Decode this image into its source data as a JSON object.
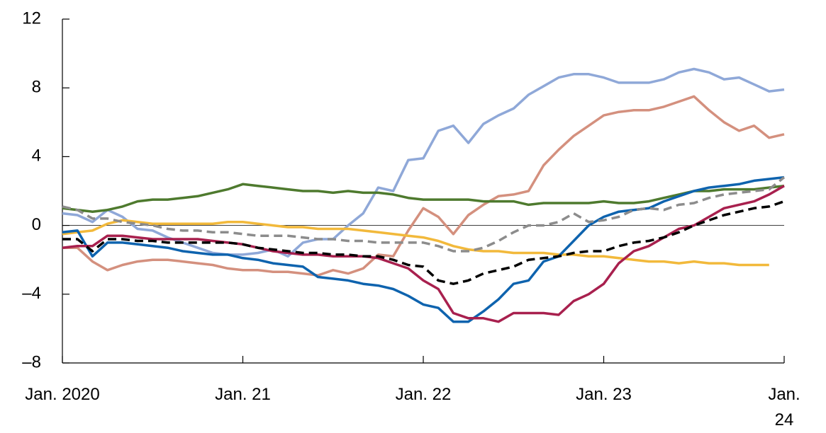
{
  "chart_data": {
    "type": "line",
    "categories": [
      "Jan. 2020",
      null,
      null,
      null,
      null,
      null,
      null,
      null,
      null,
      null,
      null,
      null,
      "Jan. 21",
      null,
      null,
      null,
      null,
      null,
      null,
      null,
      null,
      null,
      null,
      null,
      "Jan. 22",
      null,
      null,
      null,
      null,
      null,
      null,
      null,
      null,
      null,
      null,
      null,
      "Jan. 23",
      null,
      null,
      null,
      null,
      null,
      null,
      null,
      null,
      null,
      null,
      null,
      "Jan. 24"
    ],
    "ylim": [
      -8,
      12
    ],
    "yticks": [
      12,
      8,
      4,
      0,
      {
        "value": -4,
        "label": "–4"
      },
      {
        "value": -8,
        "label": "–8"
      }
    ],
    "series": [
      {
        "color": "#8fa8d8",
        "values": [
          0.7,
          0.6,
          0.2,
          0.9,
          0.5,
          -0.2,
          -0.3,
          -0.7,
          -1.0,
          -1.3,
          -1.6,
          -1.7,
          -1.7,
          -1.6,
          -1.4,
          -1.8,
          -1.0,
          -0.8,
          -0.8,
          0.0,
          0.7,
          2.2,
          2.0,
          3.8,
          3.9,
          5.5,
          5.8,
          4.8,
          5.9,
          6.4,
          6.8,
          7.6,
          8.1,
          8.6,
          8.8,
          8.8,
          8.6,
          8.3,
          8.3,
          8.3,
          8.5,
          8.9,
          9.1,
          8.9,
          8.5,
          8.6,
          8.2,
          7.8,
          7.9
        ]
      },
      {
        "color": "#d4907e",
        "values": [
          -1.3,
          -1.3,
          -2.1,
          -2.6,
          -2.3,
          -2.1,
          -2.0,
          -2.0,
          -2.1,
          -2.2,
          -2.3,
          -2.5,
          -2.6,
          -2.6,
          -2.7,
          -2.7,
          -2.8,
          -2.9,
          -2.6,
          -2.8,
          -2.5,
          -1.7,
          -1.8,
          -0.3,
          1.0,
          0.5,
          -0.5,
          0.6,
          1.2,
          1.7,
          1.8,
          2.0,
          3.5,
          4.4,
          5.2,
          5.8,
          6.4,
          6.6,
          6.7,
          6.7,
          6.9,
          7.2,
          7.5,
          6.7,
          6.0,
          5.5,
          5.8,
          5.1,
          5.3
        ]
      },
      {
        "color": "#4e7a2e",
        "values": [
          1.0,
          0.9,
          0.8,
          0.9,
          1.1,
          1.4,
          1.5,
          1.5,
          1.6,
          1.7,
          1.9,
          2.1,
          2.4,
          2.3,
          2.2,
          2.1,
          2.0,
          2.0,
          1.9,
          2.0,
          1.9,
          1.9,
          1.8,
          1.6,
          1.5,
          1.5,
          1.5,
          1.5,
          1.4,
          1.4,
          1.4,
          1.2,
          1.3,
          1.3,
          1.3,
          1.3,
          1.4,
          1.3,
          1.3,
          1.4,
          1.6,
          1.8,
          2.0,
          2.0,
          2.1,
          2.1,
          2.1,
          2.2,
          2.3
        ]
      },
      {
        "color": "#f2b93b",
        "values": [
          -0.5,
          -0.4,
          -0.3,
          0.1,
          0.3,
          0.2,
          0.1,
          0.1,
          0.1,
          0.1,
          0.1,
          0.2,
          0.2,
          0.1,
          0.0,
          -0.1,
          -0.1,
          -0.2,
          -0.2,
          -0.2,
          -0.3,
          -0.4,
          -0.5,
          -0.6,
          -0.7,
          -0.9,
          -1.2,
          -1.4,
          -1.5,
          -1.5,
          -1.6,
          -1.6,
          -1.6,
          -1.7,
          -1.7,
          -1.8,
          -1.8,
          -1.9,
          -2.0,
          -2.1,
          -2.1,
          -2.2,
          -2.1,
          -2.2,
          -2.2,
          -2.3,
          -2.3,
          -2.3,
          null
        ]
      },
      {
        "color": "#0e63ae",
        "values": [
          -0.4,
          -0.3,
          -1.8,
          -1.0,
          -1.0,
          -1.1,
          -1.2,
          -1.3,
          -1.5,
          -1.6,
          -1.7,
          -1.7,
          -1.9,
          -2.0,
          -2.2,
          -2.3,
          -2.4,
          -3.0,
          -3.1,
          -3.2,
          -3.4,
          -3.5,
          -3.7,
          -4.1,
          -4.6,
          -4.8,
          -5.6,
          -5.6,
          -5.0,
          -4.3,
          -3.4,
          -3.2,
          -2.1,
          -1.8,
          -0.9,
          0.0,
          0.5,
          0.8,
          0.9,
          1.0,
          1.4,
          1.7,
          2.0,
          2.2,
          2.3,
          2.4,
          2.6,
          2.7,
          2.8
        ]
      },
      {
        "color": "#a8204e",
        "values": [
          -1.3,
          -1.2,
          -1.2,
          -0.6,
          -0.6,
          -0.7,
          -0.8,
          -0.8,
          -0.8,
          -0.8,
          -0.9,
          -1.0,
          -1.1,
          -1.3,
          -1.5,
          -1.6,
          -1.7,
          -1.7,
          -1.8,
          -1.8,
          -1.8,
          -1.9,
          -2.2,
          -2.5,
          -3.2,
          -3.7,
          -5.1,
          -5.4,
          -5.4,
          -5.6,
          -5.1,
          -5.1,
          -5.1,
          -5.2,
          -4.4,
          -4.0,
          -3.4,
          -2.2,
          -1.5,
          -1.2,
          -0.7,
          -0.2,
          0.0,
          0.5,
          1.0,
          1.2,
          1.4,
          1.8,
          2.3
        ]
      },
      {
        "color": "#000000",
        "dashed": true,
        "values": [
          -0.8,
          -0.8,
          -1.5,
          -0.8,
          -0.8,
          -0.9,
          -0.9,
          -1.0,
          -1.0,
          -1.0,
          -1.0,
          -1.0,
          -1.1,
          -1.3,
          -1.4,
          -1.5,
          -1.6,
          -1.6,
          -1.7,
          -1.7,
          -1.8,
          -1.8,
          -2.0,
          -2.3,
          -2.4,
          -3.2,
          -3.4,
          -3.2,
          -2.8,
          -2.6,
          -2.4,
          -2.0,
          -1.9,
          -1.8,
          -1.6,
          -1.5,
          -1.5,
          -1.2,
          -1.0,
          -0.9,
          -0.7,
          -0.4,
          0.0,
          0.3,
          0.6,
          0.8,
          1.0,
          1.1,
          1.4
        ]
      },
      {
        "color": "#8c8c8c",
        "dashed": true,
        "values": [
          1.1,
          0.9,
          0.4,
          0.4,
          0.2,
          0.1,
          0.0,
          -0.2,
          -0.3,
          -0.3,
          -0.4,
          -0.4,
          -0.5,
          -0.6,
          -0.6,
          -0.6,
          -0.7,
          -0.8,
          -0.8,
          -0.9,
          -0.9,
          -1.0,
          -1.0,
          -1.0,
          -1.0,
          -1.2,
          -1.5,
          -1.5,
          -1.3,
          -0.9,
          -0.4,
          0.0,
          0.0,
          0.2,
          0.7,
          0.2,
          0.3,
          0.5,
          0.9,
          1.0,
          0.9,
          1.2,
          1.3,
          1.6,
          1.8,
          1.9,
          2.0,
          2.1,
          2.8
        ]
      }
    ]
  }
}
